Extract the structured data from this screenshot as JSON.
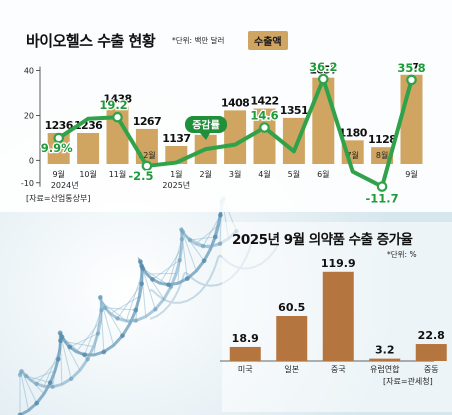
{
  "chart_data": [
    {
      "type": "bar+line",
      "title": "바이오헬스 수출 현황",
      "unit_note": "*단위: 백만 달러",
      "legend_bar": "수출액",
      "legend_line": "증감률",
      "source": "[자료=산업통상부]",
      "categories": [
        "9월",
        "10월",
        "11월",
        "12월",
        "1월",
        "2월",
        "3월",
        "4월",
        "5월",
        "6월",
        "7월",
        "8월",
        "9월"
      ],
      "year_labels": [
        {
          "index": 0,
          "text": "2024년"
        },
        {
          "index": 4,
          "text": "2025년"
        }
      ],
      "bar_values": [
        1236,
        1236,
        1438,
        1267,
        1137,
        1222,
        1408,
        1422,
        1351,
        1657,
        1180,
        1128,
        1679
      ],
      "bar_labels": [
        "1236",
        "1236",
        "1438",
        "1267",
        "1137",
        "1222",
        "1408",
        "1422",
        "1351",
        "1657",
        "1180",
        "1128",
        "1679"
      ],
      "line_values": [
        9.9,
        18.5,
        19.2,
        -2.5,
        -1,
        5,
        7,
        14.6,
        4,
        36.2,
        -5,
        -11.7,
        35.8
      ],
      "highlighted_points": [
        {
          "index": 0,
          "label": "9.9%"
        },
        {
          "index": 2,
          "label": "19.2"
        },
        {
          "index": 3,
          "label": "-2.5"
        },
        {
          "index": 7,
          "label": "14.6"
        },
        {
          "index": 9,
          "label": "36.2"
        },
        {
          "index": 11,
          "label": "-11.7"
        },
        {
          "index": 12,
          "label": "35.8"
        }
      ],
      "y_axis_ticks": [
        "40",
        "20",
        "0",
        "-10"
      ],
      "y_axis_tick_values": [
        40,
        20,
        0,
        -10
      ],
      "ylim_line": [
        -15,
        42
      ],
      "colors": {
        "bar": "#cfa561",
        "line": "#2fa24a",
        "label_green": "#1f9a3a"
      }
    },
    {
      "type": "bar",
      "title": "2025년 9월 의약품 수출 증가율",
      "unit_note": "*단위: %",
      "source": "[자료=관세청]",
      "categories": [
        "미국",
        "일본",
        "중국",
        "유럽연합",
        "중동"
      ],
      "values": [
        18.9,
        60.5,
        119.9,
        3.2,
        22.8
      ],
      "value_labels": [
        "18.9",
        "60.5",
        "119.9",
        "3.2",
        "22.8"
      ],
      "ylim": [
        0,
        125
      ],
      "colors": {
        "bar": "#b5753f"
      }
    }
  ]
}
